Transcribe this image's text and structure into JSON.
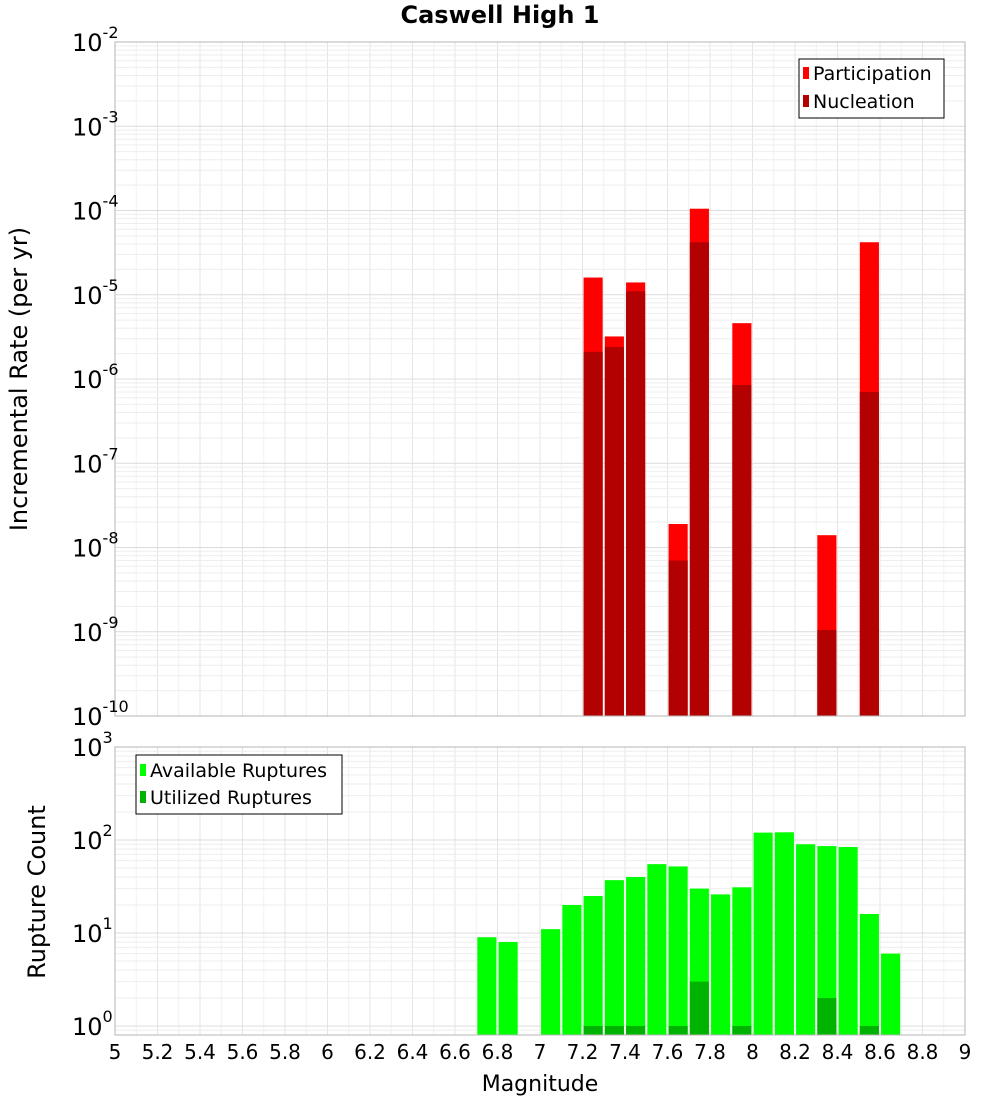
{
  "chart_data": [
    {
      "type": "bar",
      "title": "Caswell High 1",
      "ylabel": "Incremental Rate (per yr)",
      "yscale": "log",
      "ylim": [
        1e-10,
        0.01
      ],
      "xlim": [
        5,
        9
      ],
      "grid": true,
      "legend_position": "top-right",
      "bar_width": 0.09,
      "colors": {
        "participation": "#ff0000",
        "nucleation": "#b30000"
      },
      "x": [
        7.25,
        7.35,
        7.45,
        7.65,
        7.75,
        7.95,
        8.35,
        8.55
      ],
      "series": [
        {
          "name": "Participation",
          "values": [
            1.6e-05,
            3.2e-06,
            1.4e-05,
            1.9e-08,
            0.000105,
            4.6e-06,
            1.4e-08,
            4.2e-05
          ]
        },
        {
          "name": "Nucleation",
          "values": [
            2.1e-06,
            2.4e-06,
            1.1e-05,
            7e-09,
            4.2e-05,
            8.5e-07,
            1.05e-09,
            7e-07
          ]
        }
      ]
    },
    {
      "type": "bar",
      "xlabel": "Magnitude",
      "ylabel": "Rupture Count",
      "yscale": "log",
      "ylim": [
        0.8,
        1000
      ],
      "xlim": [
        5,
        9
      ],
      "grid": true,
      "legend_position": "top-left",
      "bar_width": 0.09,
      "colors": {
        "available": "#00ff00",
        "utilized": "#00b300"
      },
      "x": [
        6.75,
        6.85,
        7.05,
        7.15,
        7.25,
        7.35,
        7.45,
        7.55,
        7.65,
        7.75,
        7.85,
        7.95,
        8.05,
        8.15,
        8.25,
        8.35,
        8.45,
        8.55,
        8.65
      ],
      "series": [
        {
          "name": "Available Ruptures",
          "values": [
            9,
            8,
            11,
            20,
            25,
            37,
            40,
            55,
            52,
            30,
            26,
            31,
            120,
            121,
            90,
            86,
            84,
            16,
            6
          ]
        },
        {
          "name": "Utilized Ruptures",
          "values": [
            null,
            null,
            null,
            null,
            1,
            1,
            1,
            null,
            1,
            3,
            null,
            1,
            null,
            null,
            null,
            2,
            null,
            1,
            null
          ]
        }
      ]
    }
  ],
  "x_ticks": [
    "5",
    "5.2",
    "5.4",
    "5.6",
    "5.8",
    "6",
    "6.2",
    "6.4",
    "6.6",
    "6.8",
    "7",
    "7.2",
    "7.4",
    "7.6",
    "7.8",
    "8",
    "8.2",
    "8.4",
    "8.6",
    "8.8",
    "9"
  ],
  "top_y_ticks": [
    {
      "base": "10",
      "exp": "-2"
    },
    {
      "base": "10",
      "exp": "-3"
    },
    {
      "base": "10",
      "exp": "-4"
    },
    {
      "base": "10",
      "exp": "-5"
    },
    {
      "base": "10",
      "exp": "-6"
    },
    {
      "base": "10",
      "exp": "-7"
    },
    {
      "base": "10",
      "exp": "-8"
    },
    {
      "base": "10",
      "exp": "-9"
    },
    {
      "base": "10",
      "exp": "-10"
    }
  ],
  "bottom_y_ticks": [
    {
      "base": "10",
      "exp": "3"
    },
    {
      "base": "10",
      "exp": "2"
    },
    {
      "base": "10",
      "exp": "1"
    },
    {
      "base": "10",
      "exp": "0"
    }
  ]
}
